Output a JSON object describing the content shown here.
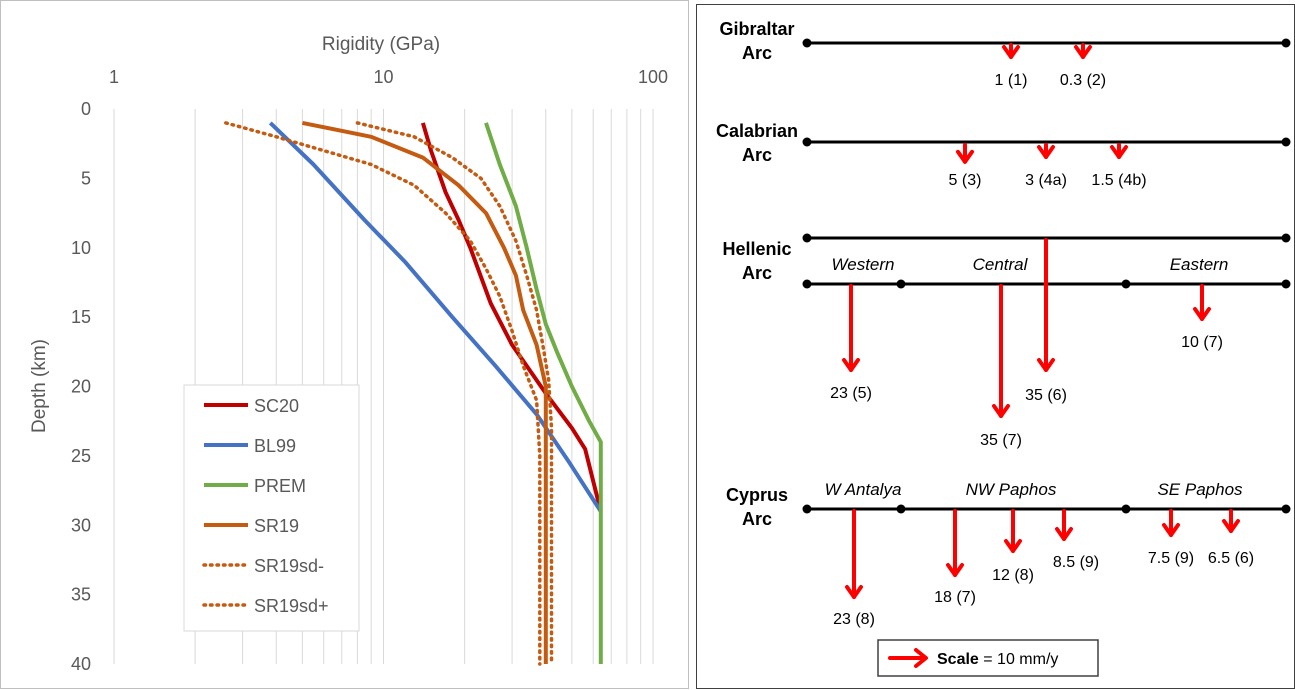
{
  "chart_data": {
    "type": "line",
    "title": "",
    "xlabel": "Rigidity (GPa)",
    "ylabel": "Depth (km)",
    "x_scale": "log",
    "xlim": [
      1,
      100
    ],
    "ylim": [
      0,
      40
    ],
    "y_inverted": true,
    "x_ticks": [
      "1",
      "10",
      "100"
    ],
    "y_ticks": [
      "0",
      "5",
      "10",
      "15",
      "20",
      "25",
      "30",
      "35",
      "40"
    ],
    "grid": "vertical minor gridlines",
    "legend_position": "bottom-left",
    "series": [
      {
        "name": "SC20",
        "color": "#c00000",
        "style": "solid",
        "points": [
          [
            14,
            1
          ],
          [
            15,
            3
          ],
          [
            17,
            6
          ],
          [
            19,
            8
          ],
          [
            21,
            10
          ],
          [
            25,
            14
          ],
          [
            30,
            17
          ],
          [
            40,
            20.5
          ],
          [
            50,
            23
          ],
          [
            56,
            24.5
          ],
          [
            64,
            29
          ]
        ]
      },
      {
        "name": "BL99",
        "color": "#4472c4",
        "style": "solid",
        "points": [
          [
            3.8,
            1
          ],
          [
            5.5,
            4
          ],
          [
            8.5,
            8
          ],
          [
            12,
            11
          ],
          [
            18,
            15
          ],
          [
            26,
            18.5
          ],
          [
            37,
            22
          ],
          [
            49,
            25.5
          ],
          [
            64,
            29
          ]
        ]
      },
      {
        "name": "PREM",
        "color": "#70ad47",
        "style": "solid",
        "points": [
          [
            24,
            1
          ],
          [
            27,
            4
          ],
          [
            31,
            7
          ],
          [
            34,
            10
          ],
          [
            37,
            13
          ],
          [
            40,
            15.5
          ],
          [
            44,
            17.5
          ],
          [
            50,
            20
          ],
          [
            58,
            22.5
          ],
          [
            64,
            24
          ],
          [
            64,
            40
          ]
        ]
      },
      {
        "name": "SR19",
        "color": "#c55a11",
        "style": "solid",
        "points": [
          [
            5,
            1
          ],
          [
            9,
            2
          ],
          [
            14,
            3.5
          ],
          [
            19,
            5.5
          ],
          [
            24,
            7.5
          ],
          [
            28,
            10
          ],
          [
            31,
            12
          ],
          [
            33,
            14.5
          ],
          [
            37,
            17
          ],
          [
            40,
            20
          ],
          [
            40,
            25
          ],
          [
            40,
            30
          ],
          [
            40,
            35
          ],
          [
            40,
            40
          ]
        ]
      },
      {
        "name": "SR19sd-",
        "color": "#c55a11",
        "style": "dotted",
        "points": [
          [
            2.6,
            1
          ],
          [
            4,
            2
          ],
          [
            6,
            3
          ],
          [
            9,
            4
          ],
          [
            13,
            5.5
          ],
          [
            17,
            7.5
          ],
          [
            21,
            9.5
          ],
          [
            24,
            11.5
          ],
          [
            27,
            13.5
          ],
          [
            30,
            16
          ],
          [
            33,
            18.5
          ],
          [
            37,
            21
          ],
          [
            38,
            25
          ],
          [
            38,
            30
          ],
          [
            38,
            35
          ],
          [
            38,
            40
          ]
        ]
      },
      {
        "name": "SR19sd+",
        "color": "#c55a11",
        "style": "dotted",
        "points": [
          [
            8,
            1
          ],
          [
            13,
            2
          ],
          [
            18,
            3.5
          ],
          [
            23,
            5
          ],
          [
            27,
            7
          ],
          [
            31,
            9.5
          ],
          [
            34,
            12
          ],
          [
            37,
            14.5
          ],
          [
            39,
            17
          ],
          [
            41,
            19.5
          ],
          [
            42,
            23
          ],
          [
            42,
            30
          ],
          [
            42,
            35
          ],
          [
            42,
            40
          ]
        ]
      }
    ]
  },
  "arrow_color": "#ff0000",
  "line_color": "#000000",
  "rate_scale_mm_per_y": 10,
  "arcs": [
    {
      "name_lines": [
        "Gibraltar",
        "Arc"
      ],
      "segments": [],
      "vectors": [
        {
          "label": "1 (1)",
          "rate": 1
        },
        {
          "label": "0.3 (2)",
          "rate": 0.3
        }
      ]
    },
    {
      "name_lines": [
        "Calabrian",
        "Arc"
      ],
      "segments": [],
      "vectors": [
        {
          "label": "5 (3)",
          "rate": 5
        },
        {
          "label": "3 (4a)",
          "rate": 3
        },
        {
          "label": "1.5 (4b)",
          "rate": 1.5
        }
      ]
    },
    {
      "name_lines": [
        "Hellenic",
        "Arc"
      ],
      "segments": [
        "Western",
        "Central",
        "Eastern"
      ],
      "vectors": [
        {
          "label": "23 (5)",
          "rate": 23
        },
        {
          "label": "35 (6)",
          "rate": 35
        },
        {
          "label": "35 (7)",
          "rate": 35
        },
        {
          "label": "10 (7)",
          "rate": 10
        }
      ]
    },
    {
      "name_lines": [
        "Cyprus",
        "Arc"
      ],
      "segments": [
        "W Antalya",
        "NW Paphos",
        "SE Paphos"
      ],
      "vectors": [
        {
          "label": "23 (8)",
          "rate": 23
        },
        {
          "label": "18 (7)",
          "rate": 18
        },
        {
          "label": "12 (8)",
          "rate": 12
        },
        {
          "label": "8.5 (9)",
          "rate": 8.5
        },
        {
          "label": "7.5 (9)",
          "rate": 7.5
        },
        {
          "label": "6.5 (6)",
          "rate": 6.5
        }
      ]
    }
  ],
  "scale_legend": {
    "bold": "Scale",
    "rest": " = 10 mm/y"
  }
}
